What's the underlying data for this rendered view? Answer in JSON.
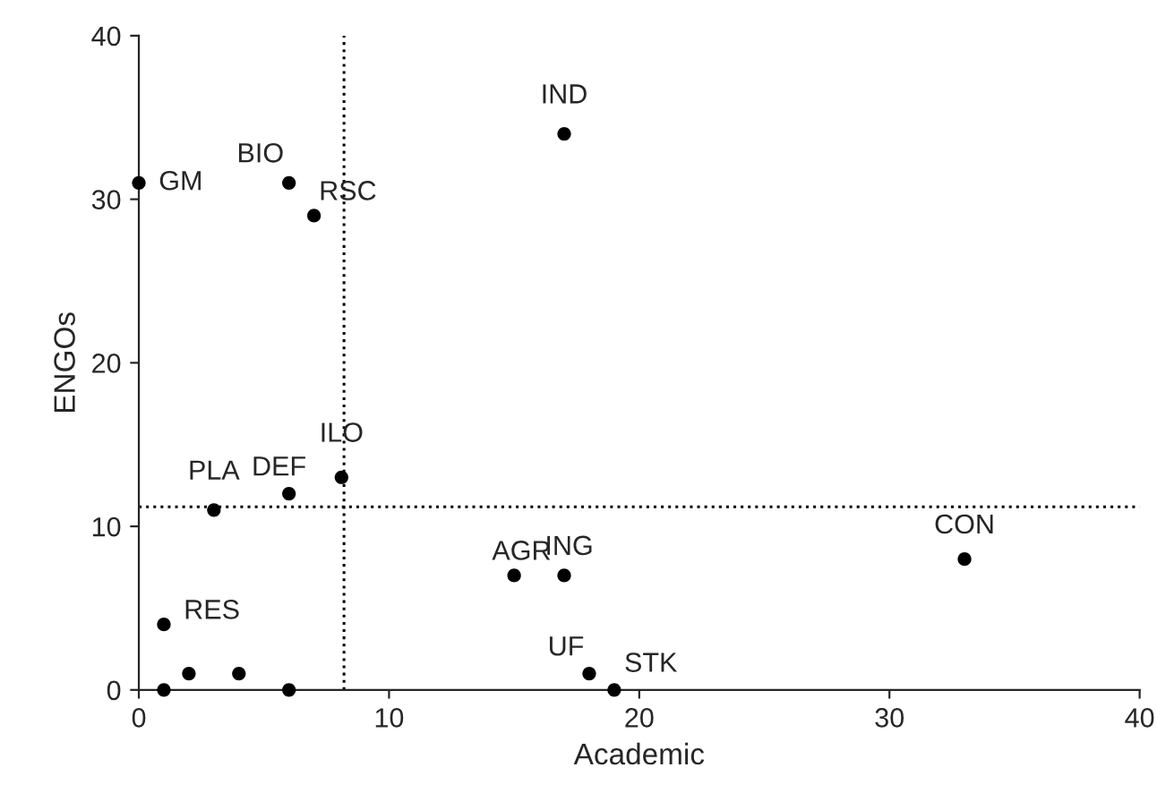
{
  "chart_data": {
    "type": "scatter",
    "xlabel": "Academic",
    "ylabel": "ENGOs",
    "x": [
      0,
      6,
      7,
      17,
      8.1,
      6,
      3,
      15,
      17,
      33,
      1,
      2,
      4,
      1,
      6,
      18,
      19
    ],
    "series": [
      {
        "color": "#000000",
        "values": [
          31,
          31,
          29,
          34,
          13,
          12,
          11,
          7,
          7,
          8,
          4,
          1,
          1,
          0,
          0,
          1,
          0
        ]
      }
    ],
    "marker": "circle",
    "xlim": [
      0,
      40
    ],
    "ylim": [
      0,
      40
    ],
    "xticks": [
      0,
      10,
      20,
      30,
      40
    ],
    "yticks": [
      0,
      10,
      20,
      30,
      40
    ],
    "grid": false,
    "legend": false,
    "ref_lines": [
      {
        "axis": "x",
        "value": 8.2,
        "line_style": "dotted",
        "color": "#000000"
      },
      {
        "axis": "y",
        "value": 11.2,
        "line_style": "dotted",
        "color": "#000000"
      }
    ],
    "annotations": [
      {
        "text": "GM",
        "x": 0,
        "y": 31
      },
      {
        "text": "BIO",
        "x": 6,
        "y": 31
      },
      {
        "text": "RSC",
        "x": 7,
        "y": 29
      },
      {
        "text": "IND",
        "x": 17,
        "y": 34
      },
      {
        "text": "ILO",
        "x": 8.1,
        "y": 13
      },
      {
        "text": "DEF",
        "x": 6,
        "y": 12
      },
      {
        "text": "PLA",
        "x": 3,
        "y": 11
      },
      {
        "text": "AGR",
        "x": 15,
        "y": 7
      },
      {
        "text": "ING",
        "x": 17,
        "y": 7
      },
      {
        "text": "CON",
        "x": 33,
        "y": 8
      },
      {
        "text": "RES",
        "x": 1,
        "y": 4
      },
      {
        "text": "UF",
        "x": 18,
        "y": 1
      },
      {
        "text": "STK",
        "x": 19,
        "y": 0
      }
    ]
  }
}
